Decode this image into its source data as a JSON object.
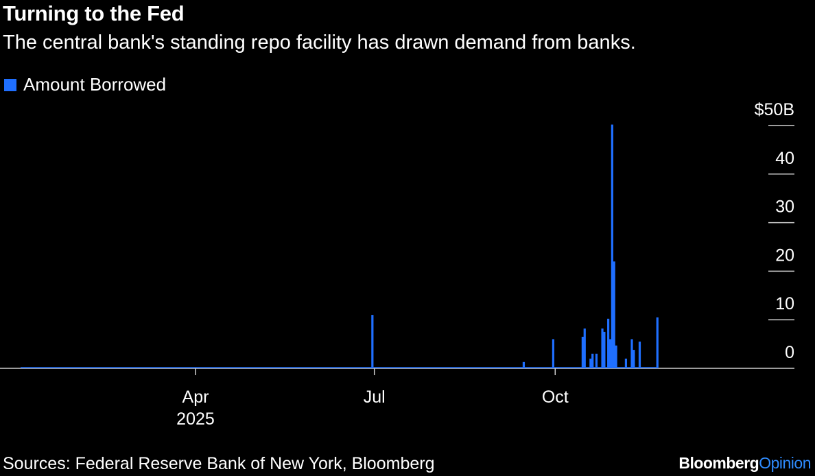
{
  "header": {
    "title": "Turning to the Fed",
    "subtitle": "The central bank's standing repo facility has drawn demand from banks."
  },
  "legend": {
    "label": "Amount Borrowed",
    "color": "#1f6fff"
  },
  "footer": {
    "source": "Sources: Federal Reserve Bank of New York, Bloomberg",
    "brand_main": "Bloomberg",
    "brand_accent": "Opinion",
    "brand_accent_color": "#2f8cff"
  },
  "chart_data": {
    "type": "bar",
    "title": "Turning to the Fed",
    "subtitle": "The central bank's standing repo facility has drawn demand from banks.",
    "ylabel": "",
    "xlabel": "",
    "ylim": [
      0,
      50
    ],
    "yticks": [
      {
        "value": 50,
        "label": "$50B"
      },
      {
        "value": 40,
        "label": "40"
      },
      {
        "value": 30,
        "label": "30"
      },
      {
        "value": 20,
        "label": "20"
      },
      {
        "value": 10,
        "label": "10"
      },
      {
        "value": 0,
        "label": "0"
      }
    ],
    "xlim": [
      "2025-01-02",
      "2025-12-31"
    ],
    "xticks": [
      {
        "date": "2025-04-01",
        "label": "Apr",
        "sublabel": "2025"
      },
      {
        "date": "2025-07-01",
        "label": "Jul",
        "sublabel": ""
      },
      {
        "date": "2025-10-01",
        "label": "Oct",
        "sublabel": ""
      }
    ],
    "grid": false,
    "legend_position": "top-left",
    "series": [
      {
        "name": "Amount Borrowed",
        "color": "#1f6fff",
        "points": [
          {
            "date": "2025-06-30",
            "value": 11
          },
          {
            "date": "2025-09-15",
            "value": 1.3
          },
          {
            "date": "2025-09-30",
            "value": 6
          },
          {
            "date": "2025-10-15",
            "value": 6.5
          },
          {
            "date": "2025-10-16",
            "value": 8.2
          },
          {
            "date": "2025-10-19",
            "value": 2
          },
          {
            "date": "2025-10-20",
            "value": 3
          },
          {
            "date": "2025-10-22",
            "value": 3
          },
          {
            "date": "2025-10-25",
            "value": 8.2
          },
          {
            "date": "2025-10-26",
            "value": 7.5
          },
          {
            "date": "2025-10-28",
            "value": 10.2
          },
          {
            "date": "2025-10-29",
            "value": 6
          },
          {
            "date": "2025-10-30",
            "value": 50.2
          },
          {
            "date": "2025-10-31",
            "value": 22
          },
          {
            "date": "2025-11-01",
            "value": 4.7
          },
          {
            "date": "2025-11-06",
            "value": 2
          },
          {
            "date": "2025-11-09",
            "value": 6
          },
          {
            "date": "2025-11-10",
            "value": 3.8
          },
          {
            "date": "2025-11-13",
            "value": 5.5
          },
          {
            "date": "2025-11-22",
            "value": 10.5
          }
        ]
      }
    ]
  }
}
